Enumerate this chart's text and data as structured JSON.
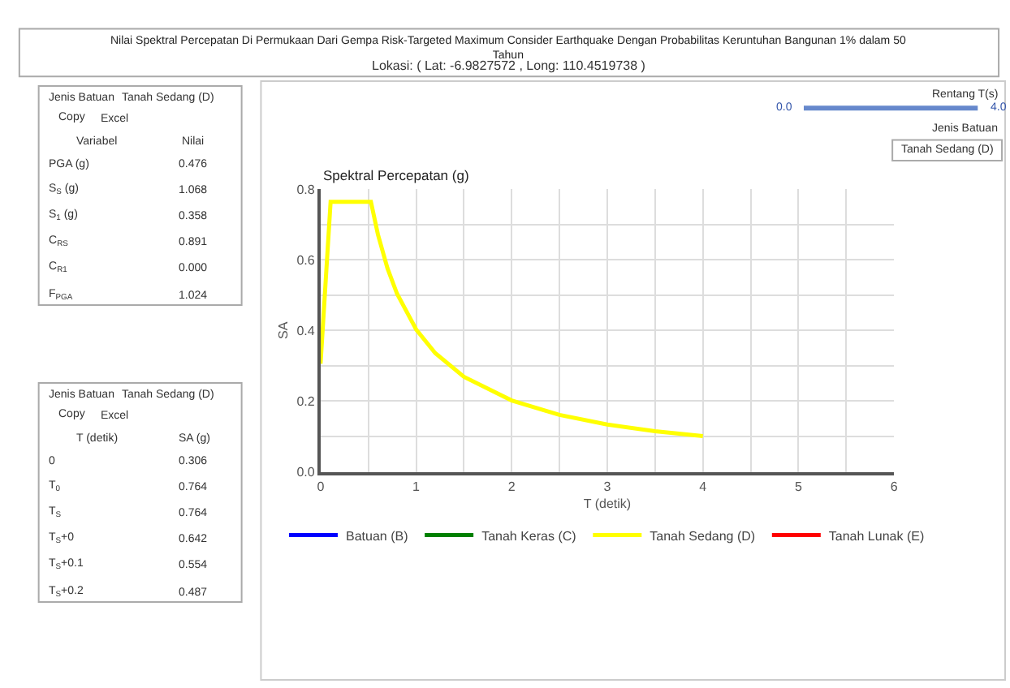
{
  "chart_data": [
    {
      "type": "other",
      "title": "Nilai Spektral Percepatan Di Permukaan Dari Gempa Risk-Targeted Maximum Consider Earthquake Dengan Probabilitas Keruntuhan Bangunan 1% dalam 50 Tahun",
      "subtitle": "Lokasi: ( Lat: -6.9827572 , Long: 110.4519738 )"
    },
    {
      "type": "other",
      "annotations": [
        "Jenis Batuan",
        "Tanah Sedang (D)",
        "Copy",
        "Excel"
      ],
      "xlabel": "Variabel",
      "ylabel": "Nilai",
      "categories": [
        "PGA (g)",
        "S$_{S}$ (g)",
        "S$_{1}$ (g)",
        "C$_{RS}$",
        "C$_{R1}$",
        "F$_{PGA}$"
      ],
      "value_labels": [
        "0.476",
        "1.068",
        "0.358",
        "0.891",
        "0.000",
        "1.024"
      ]
    },
    {
      "type": "other",
      "annotations": [
        "Jenis Batuan",
        "Tanah Sedang (D)",
        "Copy",
        "Excel"
      ],
      "xlabel": "T (detik)",
      "ylabel": "SA (g)",
      "categories": [
        "0",
        "T$_{0}$",
        "T$_{S}$",
        "T$_{S}$+0",
        "T$_{S}$+0.1",
        "T$_{S}$+0.2"
      ],
      "value_labels": [
        "0.306",
        "0.764",
        "0.764",
        "0.642",
        "0.554",
        "0.487"
      ]
    },
    {
      "type": "other",
      "annotations": [
        "Rentang T(s)",
        "0.0",
        "4.0",
        "Jenis Batuan",
        "Tanah Sedang (D)"
      ]
    },
    {
      "type": "line",
      "title": "Spektral Percepatan (g)",
      "xlabel": "T (detik)",
      "ylabel": "SA",
      "xlim": [
        0,
        6
      ],
      "ylim": [
        0,
        0.8
      ],
      "xticks": [
        0,
        {
          "value": 0.5,
          "label": null
        },
        1,
        {
          "value": 1.5,
          "label": null
        },
        2,
        {
          "value": 2.5,
          "label": null
        },
        3,
        {
          "value": 3.5,
          "label": null
        },
        4,
        {
          "value": 4.5,
          "label": null
        },
        5,
        {
          "value": 5.5,
          "label": null
        },
        6
      ],
      "yticks": [
        {
          "value": 0,
          "label": "0.0"
        },
        {
          "value": 0.1,
          "label": null
        },
        {
          "value": 0.2,
          "label": "0.2"
        },
        {
          "value": 0.3,
          "label": null
        },
        {
          "value": 0.4,
          "label": "0.4"
        },
        {
          "value": 0.5,
          "label": null
        },
        {
          "value": 0.6,
          "label": "0.6"
        },
        {
          "value": 0.7,
          "label": null
        },
        {
          "value": 0.8,
          "label": "0.8"
        }
      ],
      "grid": true,
      "legend": "bottom",
      "series": [
        {
          "name": "Batuan (B)",
          "color": "#0000ff"
        },
        {
          "name": "Tanah Keras (C)",
          "color": "#008000"
        },
        {
          "name": "Tanah Sedang (D)",
          "color": "#ffff00",
          "x": [
            0,
            0.105,
            0.527,
            0.6,
            0.7,
            0.8,
            1.0,
            1.2,
            1.5,
            2.0,
            2.5,
            3.0,
            3.5,
            4.0
          ],
          "values": [
            0.306,
            0.764,
            0.764,
            0.672,
            0.576,
            0.504,
            0.403,
            0.336,
            0.269,
            0.202,
            0.161,
            0.134,
            0.115,
            0.101
          ]
        },
        {
          "name": "Tanah Lunak (E)",
          "color": "#ff0000"
        }
      ]
    }
  ]
}
